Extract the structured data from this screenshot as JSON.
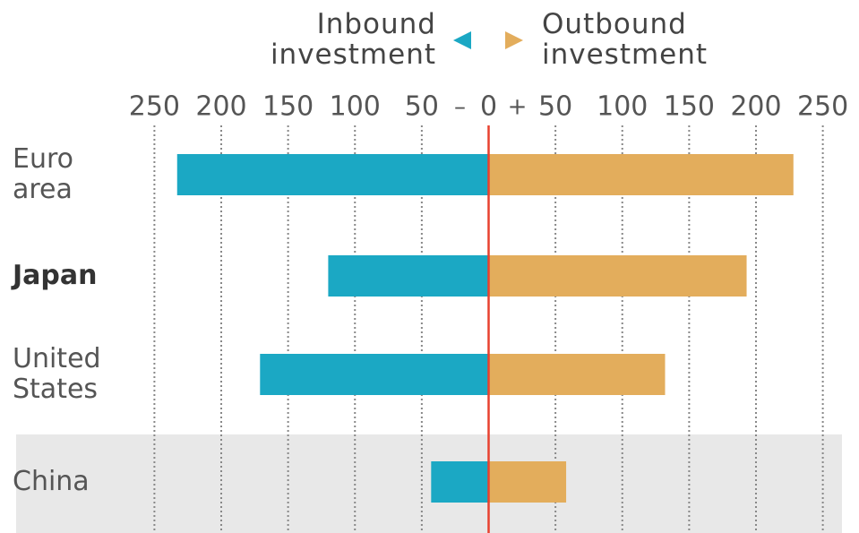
{
  "chart_data": {
    "type": "diverging_bar",
    "categories": [
      "Euro area",
      "Japan",
      "United States",
      "China"
    ],
    "series": [
      {
        "name": "Inbound investment",
        "color": "#1ba8c4",
        "values": [
          -233,
          -120,
          -171,
          -43
        ]
      },
      {
        "name": "Outbound investment",
        "color": "#e3ad5c",
        "values": [
          228,
          193,
          132,
          58
        ]
      }
    ],
    "xlim": [
      -265,
      265
    ],
    "xticks": [
      {
        "value": -250,
        "label": "250"
      },
      {
        "value": -200,
        "label": "200"
      },
      {
        "value": -150,
        "label": "150"
      },
      {
        "value": -100,
        "label": "100"
      },
      {
        "value": -50,
        "label": "50"
      },
      0,
      50,
      100,
      150,
      200,
      250
    ],
    "sign_labels": [
      "–",
      "+"
    ],
    "grid": true,
    "zero_line_color": "#e8412f"
  }
}
